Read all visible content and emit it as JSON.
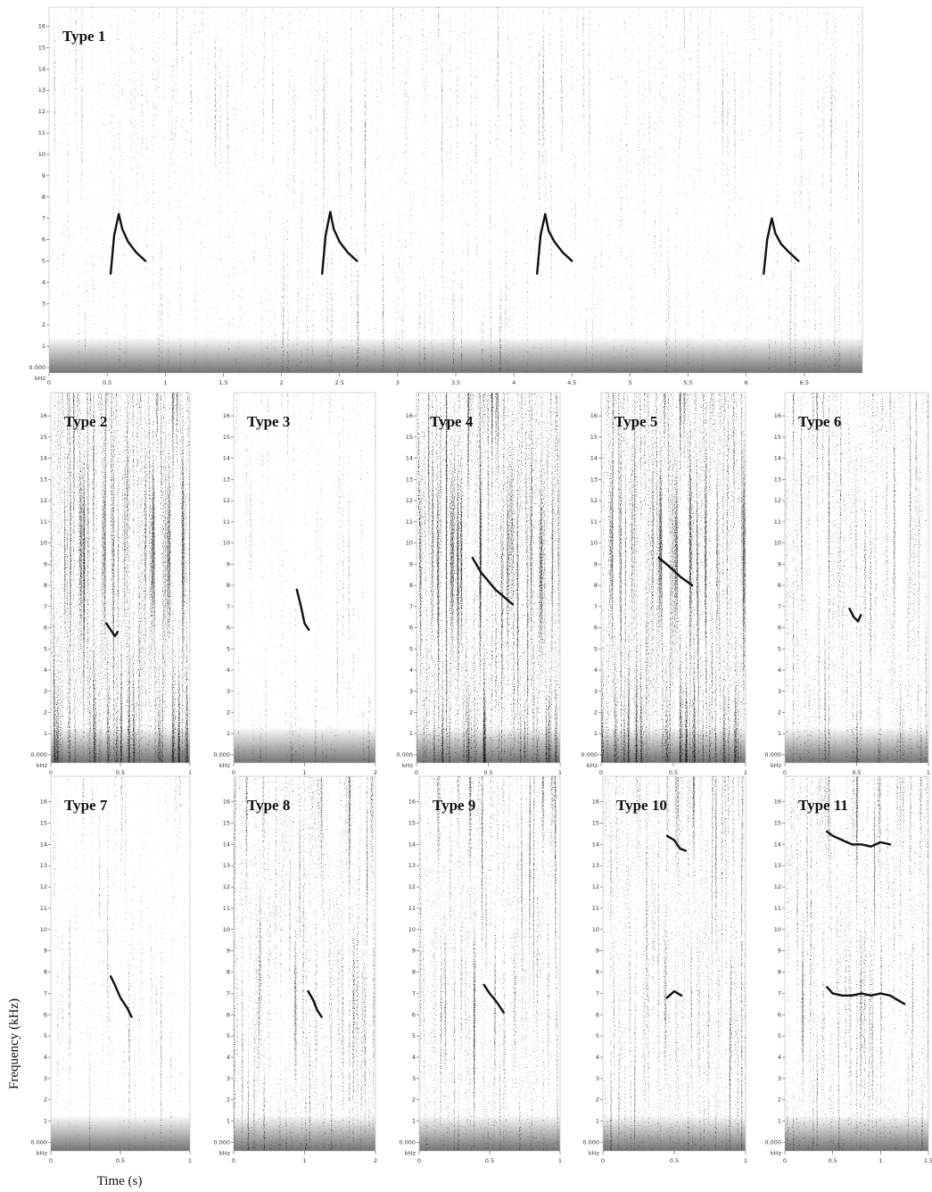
{
  "figure": {
    "ylabel": "Frequency (kHz)",
    "xlabel": "Time (s)"
  },
  "chart_data": [
    {
      "type": "spectrogram",
      "title": "Type 1",
      "y_unit": "kHz",
      "xlim": [
        0,
        7
      ],
      "xticks": [
        0,
        0.5,
        1,
        1.5,
        2,
        2.5,
        3,
        3.5,
        4,
        4.5,
        5,
        5.5,
        6,
        6.5
      ],
      "ylim": [
        -0.25,
        16.9
      ],
      "yticks": [
        {
          "value": 0,
          "label": "0.000"
        },
        1,
        2,
        3,
        4,
        5,
        6,
        7,
        8,
        9,
        10,
        11,
        12,
        13,
        14,
        15,
        16
      ],
      "calls": [
        {
          "x": [
            0.53,
            0.56,
            0.6,
            0.63,
            0.68,
            0.75,
            0.83
          ],
          "values": [
            4.4,
            6.2,
            7.2,
            6.5,
            5.9,
            5.4,
            5.0
          ]
        },
        {
          "x": [
            2.35,
            2.38,
            2.42,
            2.45,
            2.5,
            2.57,
            2.65
          ],
          "values": [
            4.4,
            6.2,
            7.3,
            6.5,
            5.9,
            5.4,
            5.0
          ]
        },
        {
          "x": [
            4.2,
            4.23,
            4.27,
            4.3,
            4.35,
            4.42,
            4.5
          ],
          "values": [
            4.4,
            6.2,
            7.2,
            6.4,
            5.9,
            5.4,
            5.0
          ]
        },
        {
          "x": [
            6.15,
            6.18,
            6.22,
            6.25,
            6.3,
            6.37,
            6.45
          ],
          "values": [
            4.4,
            6.0,
            7.0,
            6.3,
            5.8,
            5.4,
            5.0
          ]
        }
      ]
    },
    {
      "type": "spectrogram",
      "title": "Type 2",
      "y_unit": "kHz",
      "xlim": [
        0,
        1
      ],
      "xticks": [
        0,
        0.5,
        1
      ],
      "ylim": [
        -0.38,
        17.1
      ],
      "yticks": [
        {
          "value": 0,
          "label": "0.000"
        },
        1,
        2,
        3,
        4,
        5,
        6,
        7,
        8,
        9,
        10,
        11,
        12,
        13,
        14,
        15,
        16
      ],
      "calls": [
        {
          "x": [
            0.4,
            0.43,
            0.46,
            0.48
          ],
          "values": [
            6.2,
            5.9,
            5.6,
            5.8
          ]
        }
      ]
    },
    {
      "type": "spectrogram",
      "title": "Type 3",
      "y_unit": "kHz",
      "xlim": [
        0,
        2
      ],
      "xticks": [
        0,
        1,
        2
      ],
      "ylim": [
        -0.38,
        17.1
      ],
      "yticks": [
        {
          "value": 0,
          "label": "0.000"
        },
        1,
        2,
        3,
        4,
        5,
        6,
        7,
        8,
        9,
        10,
        11,
        12,
        13,
        14,
        15,
        16
      ],
      "calls": [
        {
          "x": [
            0.89,
            0.95,
            1.0,
            1.06
          ],
          "values": [
            7.8,
            7.0,
            6.2,
            5.9
          ]
        }
      ]
    },
    {
      "type": "spectrogram",
      "title": "Type 4",
      "y_unit": "kHz",
      "xlim": [
        0,
        1
      ],
      "xticks": [
        0,
        0.5,
        1
      ],
      "ylim": [
        -0.38,
        17.1
      ],
      "yticks": [
        {
          "value": 0,
          "label": "0.000"
        },
        1,
        2,
        3,
        4,
        5,
        6,
        7,
        8,
        9,
        10,
        11,
        12,
        13,
        14,
        15,
        16
      ],
      "calls": [
        {
          "x": [
            0.39,
            0.45,
            0.55,
            0.67
          ],
          "values": [
            9.3,
            8.6,
            7.8,
            7.1
          ]
        }
      ]
    },
    {
      "type": "spectrogram",
      "title": "Type 5",
      "y_unit": "kHz",
      "xlim": [
        0,
        1
      ],
      "xticks": [
        0,
        0.5,
        1
      ],
      "ylim": [
        -0.38,
        17.1
      ],
      "yticks": [
        {
          "value": 0,
          "label": "0.000"
        },
        1,
        2,
        3,
        4,
        5,
        6,
        7,
        8,
        9,
        10,
        11,
        12,
        13,
        14,
        15,
        16
      ],
      "calls": [
        {
          "x": [
            0.4,
            0.47,
            0.55,
            0.63
          ],
          "values": [
            9.3,
            8.9,
            8.4,
            8.0
          ]
        }
      ]
    },
    {
      "type": "spectrogram",
      "title": "Type 6",
      "y_unit": "kHz",
      "xlim": [
        0,
        1
      ],
      "xticks": [
        0,
        0.5,
        1
      ],
      "ylim": [
        -0.38,
        17.1
      ],
      "yticks": [
        {
          "value": 0,
          "label": "0.000"
        },
        1,
        2,
        3,
        4,
        5,
        6,
        7,
        8,
        9,
        10,
        11,
        12,
        13,
        14,
        15,
        16
      ],
      "calls": [
        {
          "x": [
            0.45,
            0.48,
            0.51,
            0.53
          ],
          "values": [
            6.9,
            6.5,
            6.3,
            6.6
          ]
        }
      ]
    },
    {
      "type": "spectrogram",
      "title": "Type 7",
      "y_unit": "kHz",
      "xlim": [
        0,
        1
      ],
      "xticks": [
        0,
        0.5,
        1
      ],
      "ylim": [
        -0.4,
        17.2
      ],
      "yticks": [
        {
          "value": 0,
          "label": "0.000"
        },
        1,
        2,
        3,
        4,
        5,
        6,
        7,
        8,
        9,
        10,
        11,
        12,
        13,
        14,
        15,
        16
      ],
      "calls": [
        {
          "x": [
            0.43,
            0.46,
            0.5,
            0.55,
            0.58
          ],
          "values": [
            7.8,
            7.4,
            6.8,
            6.3,
            5.9
          ]
        }
      ]
    },
    {
      "type": "spectrogram",
      "title": "Type 8",
      "y_unit": "kHz",
      "xlim": [
        0,
        2
      ],
      "xticks": [
        0,
        1,
        2
      ],
      "ylim": [
        -0.4,
        17.2
      ],
      "yticks": [
        {
          "value": 0,
          "label": "0.000"
        },
        1,
        2,
        3,
        4,
        5,
        6,
        7,
        8,
        9,
        10,
        11,
        12,
        13,
        14,
        15,
        16
      ],
      "calls": [
        {
          "x": [
            1.05,
            1.12,
            1.18,
            1.24
          ],
          "values": [
            7.1,
            6.7,
            6.2,
            5.9
          ]
        }
      ]
    },
    {
      "type": "spectrogram",
      "title": "Type 9",
      "y_unit": "kHz",
      "xlim": [
        0,
        1
      ],
      "xticks": [
        0,
        0.5,
        1
      ],
      "ylim": [
        -0.4,
        17.2
      ],
      "yticks": [
        {
          "value": 0,
          "label": "0.000"
        },
        1,
        2,
        3,
        4,
        5,
        6,
        7,
        8,
        9,
        10,
        11,
        12,
        13,
        14,
        15,
        16
      ],
      "calls": [
        {
          "x": [
            0.46,
            0.5,
            0.55,
            0.6
          ],
          "values": [
            7.4,
            7.0,
            6.6,
            6.1
          ]
        }
      ]
    },
    {
      "type": "spectrogram",
      "title": "Type 10",
      "y_unit": "kHz",
      "xlim": [
        0,
        1
      ],
      "xticks": [
        0,
        0.5,
        1
      ],
      "ylim": [
        -0.4,
        17.2
      ],
      "yticks": [
        {
          "value": 0,
          "label": "0.000"
        },
        1,
        2,
        3,
        4,
        5,
        6,
        7,
        8,
        9,
        10,
        11,
        12,
        13,
        14,
        15,
        16
      ],
      "calls": [
        {
          "x": [
            0.45,
            0.5,
            0.54,
            0.58
          ],
          "values": [
            14.4,
            14.2,
            13.8,
            13.7
          ]
        },
        {
          "x": [
            0.45,
            0.5,
            0.55
          ],
          "values": [
            6.8,
            7.1,
            6.9
          ]
        }
      ]
    },
    {
      "type": "spectrogram",
      "title": "Type 11",
      "y_unit": "kHz",
      "xlim": [
        0,
        1.5
      ],
      "xticks": [
        0,
        0.5,
        1,
        1.5
      ],
      "ylim": [
        -0.4,
        17.2
      ],
      "yticks": [
        {
          "value": 0,
          "label": "0.000"
        },
        1,
        2,
        3,
        4,
        5,
        6,
        7,
        8,
        9,
        10,
        11,
        12,
        13,
        14,
        15,
        16
      ],
      "calls": [
        {
          "x": [
            0.44,
            0.5,
            0.6,
            0.7,
            0.8,
            0.9,
            1.0,
            1.1
          ],
          "values": [
            14.6,
            14.4,
            14.2,
            14.0,
            14.0,
            13.9,
            14.1,
            14.0
          ]
        },
        {
          "x": [
            0.44,
            0.5,
            0.6,
            0.7,
            0.8,
            0.9,
            1.0,
            1.1,
            1.25
          ],
          "values": [
            7.3,
            7.0,
            6.9,
            6.9,
            7.0,
            6.9,
            7.0,
            6.9,
            6.5
          ]
        }
      ]
    }
  ]
}
